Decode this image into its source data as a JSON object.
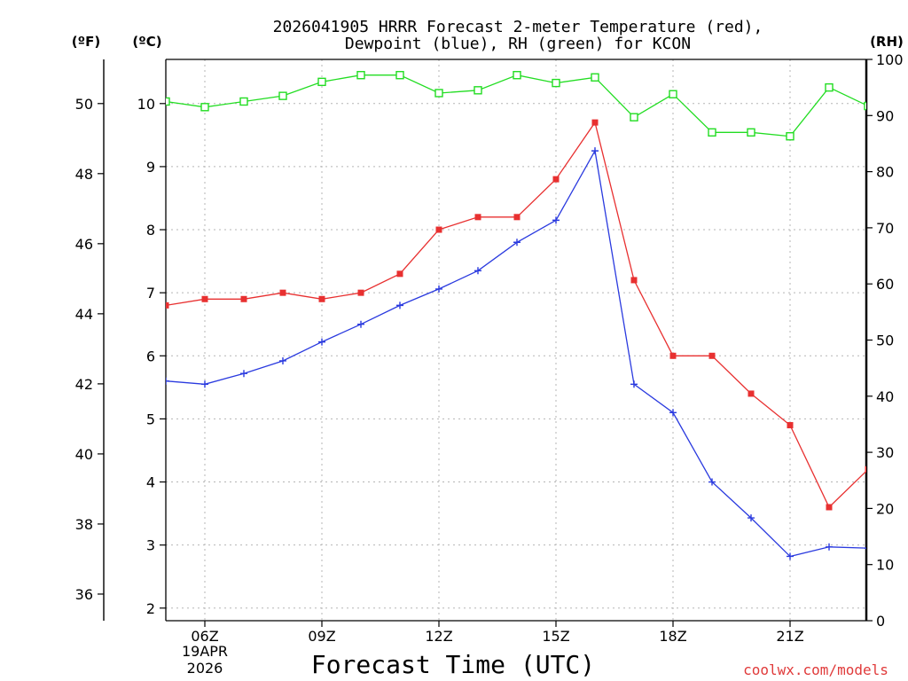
{
  "chart_data": {
    "type": "line",
    "title_line1": "2026041905 HRRR Forecast 2-meter Temperature (red),",
    "title_line2": "Dewpoint (blue), RH (green) for KCON",
    "xlabel": "Forecast Time (UTC)",
    "date_label_1": "19APR",
    "date_label_2": "2026",
    "watermark": "coolwx.com/models",
    "unit_f": "(ºF)",
    "unit_c": "(ºC)",
    "unit_rh": "(RH)",
    "x_hours": [
      5,
      6,
      7,
      8,
      9,
      10,
      11,
      12,
      13,
      14,
      15,
      16,
      17,
      18,
      19,
      20,
      21,
      22,
      23
    ],
    "x_ticks": [
      {
        "hour": 6,
        "label": "06Z"
      },
      {
        "hour": 9,
        "label": "09Z"
      },
      {
        "hour": 12,
        "label": "12Z"
      },
      {
        "hour": 15,
        "label": "15Z"
      },
      {
        "hour": 18,
        "label": "18Z"
      },
      {
        "hour": 21,
        "label": "21Z"
      }
    ],
    "c_range": [
      1.8,
      10.7
    ],
    "c_ticks": [
      2,
      3,
      4,
      5,
      6,
      7,
      8,
      9,
      10
    ],
    "f_ticks": [
      36,
      38,
      40,
      42,
      44,
      46,
      48,
      50
    ],
    "rh_range": [
      0,
      100
    ],
    "rh_ticks": [
      0,
      10,
      20,
      30,
      40,
      50,
      60,
      70,
      80,
      90,
      100
    ],
    "series": [
      {
        "name": "Temperature",
        "axis": "C",
        "color": "#e83030",
        "marker": "filled-square",
        "values": [
          6.8,
          6.9,
          6.9,
          7.0,
          6.9,
          7.0,
          7.3,
          8.0,
          8.2,
          8.2,
          8.8,
          9.7,
          7.2,
          6.0,
          6.0,
          5.4,
          4.9,
          3.6,
          4.2
        ]
      },
      {
        "name": "Dewpoint",
        "axis": "C",
        "color": "#2a3adf",
        "marker": "plus",
        "values": [
          5.6,
          5.55,
          5.72,
          5.92,
          6.22,
          6.5,
          6.8,
          7.06,
          7.35,
          7.8,
          8.15,
          9.25,
          5.55,
          5.1,
          4.0,
          3.43,
          2.82,
          2.97,
          2.95
        ]
      },
      {
        "name": "RH",
        "axis": "RH",
        "color": "#22dd22",
        "marker": "open-square",
        "values": [
          92.5,
          91.5,
          92.5,
          93.5,
          96.0,
          97.2,
          97.2,
          94.0,
          94.5,
          97.2,
          95.8,
          96.8,
          89.7,
          93.8,
          87.0,
          87.0,
          86.3,
          95.0,
          91.7
        ]
      }
    ]
  }
}
